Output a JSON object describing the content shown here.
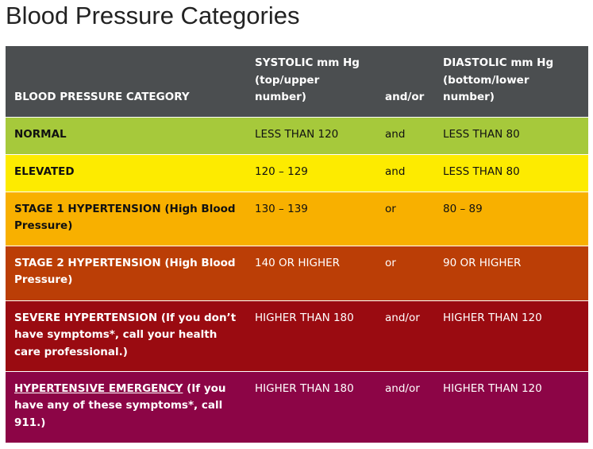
{
  "title": "Blood Pressure Categories",
  "table": {
    "header": [
      "BLOOD PRESSURE CATEGORY",
      "SYSTOLIC mm Hg (top/upper number)",
      "and/or",
      "DIASTOLIC mm Hg (bottom/lower number)"
    ],
    "rows": [
      {
        "category": "NORMAL",
        "systolic": "LESS THAN 120",
        "relation": "and",
        "diastolic": "LESS THAN 80"
      },
      {
        "category": "ELEVATED",
        "systolic": "120 – 129",
        "relation": "and",
        "diastolic": "LESS THAN 80"
      },
      {
        "category": "STAGE 1 HYPERTENSION (High Blood Pressure)",
        "systolic": "130 – 139",
        "relation": "or",
        "diastolic": "80 – 89"
      },
      {
        "category": "STAGE 2 HYPERTENSION (High Blood Pressure)",
        "systolic": "140 OR HIGHER",
        "relation": "or",
        "diastolic": "90 OR HIGHER"
      },
      {
        "category": "SEVERE HYPERTENSION (If you don’t have symptoms*, call your health care professional.)",
        "systolic": "HIGHER THAN 180",
        "relation": "and/or",
        "diastolic": "HIGHER THAN 120"
      },
      {
        "category": "HYPERTENSIVE EMERGENCY",
        "category_note": "(If you have any of these symptoms*, call 911.)",
        "systolic": "HIGHER THAN 180",
        "relation": "and/or",
        "diastolic": "HIGHER THAN 120"
      }
    ]
  }
}
